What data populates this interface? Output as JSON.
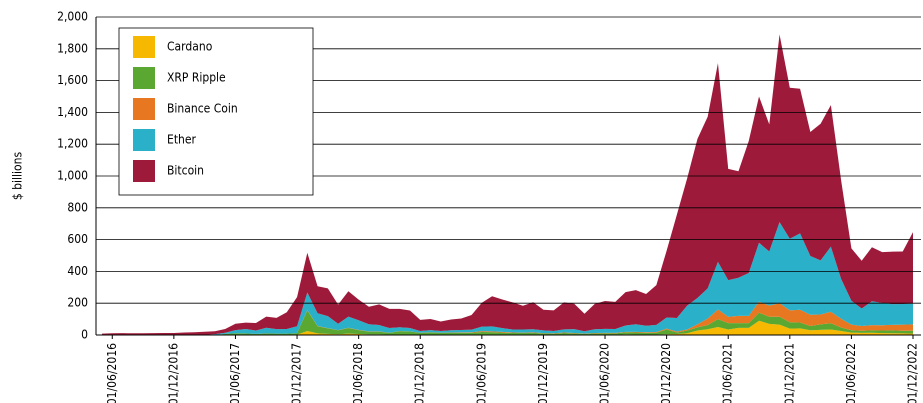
{
  "chart_data": {
    "type": "stacked_area",
    "y_label": "$ billions",
    "x": [
      "01/05/2016",
      "01/06/2016",
      "01/07/2016",
      "01/08/2016",
      "01/09/2016",
      "01/10/2016",
      "01/11/2016",
      "01/12/2016",
      "01/01/2017",
      "01/02/2017",
      "01/03/2017",
      "01/04/2017",
      "01/05/2017",
      "01/06/2017",
      "01/07/2017",
      "01/08/2017",
      "01/09/2017",
      "01/10/2017",
      "01/11/2017",
      "01/12/2017",
      "01/01/2018",
      "01/02/2018",
      "01/03/2018",
      "01/04/2018",
      "01/05/2018",
      "01/06/2018",
      "01/07/2018",
      "01/08/2018",
      "01/09/2018",
      "01/10/2018",
      "01/11/2018",
      "01/12/2018",
      "01/01/2019",
      "01/02/2019",
      "01/03/2019",
      "01/04/2019",
      "01/05/2019",
      "01/06/2019",
      "01/07/2019",
      "01/08/2019",
      "01/09/2019",
      "01/10/2019",
      "01/11/2019",
      "01/12/2019",
      "01/01/2020",
      "01/02/2020",
      "01/03/2020",
      "01/04/2020",
      "01/05/2020",
      "01/06/2020",
      "01/07/2020",
      "01/08/2020",
      "01/09/2020",
      "01/10/2020",
      "01/11/2020",
      "01/12/2020",
      "01/01/2021",
      "01/02/2021",
      "01/03/2021",
      "01/04/2021",
      "01/05/2021",
      "01/06/2021",
      "01/07/2021",
      "01/08/2021",
      "01/09/2021",
      "01/10/2021",
      "01/11/2021",
      "01/12/2021",
      "01/01/2022",
      "01/02/2022",
      "01/03/2022",
      "01/04/2022",
      "01/05/2022",
      "01/06/2022",
      "01/07/2022",
      "01/08/2022",
      "01/09/2022",
      "01/10/2022",
      "01/11/2022",
      "01/12/2022"
    ],
    "xticks": [
      "01/06/2016",
      "01/12/2016",
      "01/06/2017",
      "01/12/2017",
      "01/06/2018",
      "01/12/2018",
      "01/06/2019",
      "01/12/2019",
      "01/06/2020",
      "01/12/2020",
      "01/06/2021",
      "01/12/2021",
      "01/06/2022",
      "01/12/2022"
    ],
    "ylim": [
      0,
      2000
    ],
    "yticks": [
      0,
      200,
      400,
      600,
      800,
      {
        "value": 1000,
        "label": "1,000"
      },
      {
        "value": 1200,
        "label": "1,200"
      },
      {
        "value": 1400,
        "label": "1,400"
      },
      {
        "value": 1600,
        "label": "1,600"
      },
      {
        "value": 1800,
        "label": "1,800"
      },
      {
        "value": 2000,
        "label": "2,000"
      }
    ],
    "grid": true,
    "legend": "upper left",
    "series": [
      {
        "name": "Cardano",
        "color": "#f6b800",
        "values": [
          0,
          0,
          0,
          0,
          0,
          0,
          0,
          0,
          0,
          0,
          0,
          0,
          0,
          0,
          0,
          0,
          0.8,
          0.7,
          0.8,
          2.5,
          25,
          10,
          7,
          5,
          9,
          6,
          4,
          4,
          2,
          2,
          2,
          1,
          1,
          1,
          1,
          1,
          2,
          2,
          2,
          2,
          1.5,
          1.3,
          1.3,
          1,
          1,
          1.5,
          1.2,
          0.8,
          1.3,
          2,
          2.5,
          4,
          3.5,
          3,
          3.5,
          5,
          6,
          11,
          28,
          36,
          50,
          35,
          45,
          45,
          90,
          70,
          65,
          40,
          42,
          30,
          32,
          35,
          25,
          15,
          13,
          14,
          12,
          11,
          10,
          9
        ]
      },
      {
        "name": "XRP Ripple",
        "color": "#5aa832",
        "values": [
          0.2,
          0.2,
          0.3,
          0.2,
          0.3,
          0.3,
          0.3,
          0.2,
          0.2,
          0.2,
          0.3,
          1,
          7,
          11,
          10,
          7,
          9,
          8,
          8,
          9,
          130,
          45,
          35,
          25,
          35,
          25,
          17,
          17,
          11,
          22,
          20,
          12,
          15,
          12,
          13,
          13,
          12,
          17,
          16,
          13,
          11,
          12,
          12,
          9,
          8,
          11,
          9,
          7,
          9,
          9,
          8,
          13,
          12,
          11,
          11,
          30,
          10,
          17,
          20,
          27,
          50,
          40,
          30,
          30,
          50,
          45,
          50,
          40,
          37,
          27,
          35,
          39,
          22,
          15,
          14,
          15,
          16,
          18,
          17,
          18
        ]
      },
      {
        "name": "Binance Coin",
        "color": "#e87722",
        "values": [
          0,
          0,
          0,
          0,
          0,
          0,
          0,
          0,
          0,
          0,
          0,
          0,
          0,
          0,
          0.1,
          0.1,
          0.1,
          0.1,
          0.2,
          0.4,
          2,
          1.5,
          1.5,
          1,
          1.5,
          1.5,
          1.5,
          1.5,
          1,
          1,
          1,
          0.8,
          1,
          1,
          1.5,
          2.5,
          3,
          5,
          5,
          5,
          3.5,
          2,
          3,
          2,
          2,
          3,
          2.5,
          2,
          2.5,
          2.5,
          2.5,
          3,
          4,
          4,
          4,
          5,
          6,
          7,
          20,
          40,
          60,
          40,
          45,
          45,
          70,
          70,
          85,
          75,
          80,
          70,
          62,
          72,
          55,
          35,
          30,
          33,
          33,
          35,
          38,
          40
        ]
      },
      {
        "name": "Ether",
        "color": "#2ab0c8",
        "values": [
          0.9,
          1.1,
          1,
          0.9,
          1,
          1,
          0.8,
          0.7,
          0.8,
          1,
          1.5,
          4.5,
          7.5,
          20,
          28,
          21,
          36,
          28,
          29,
          43,
          110,
          80,
          75,
          40,
          70,
          60,
          45,
          40,
          30,
          24,
          21,
          11,
          14,
          11,
          14,
          15,
          17,
          29,
          31,
          23,
          19,
          19,
          20,
          17,
          14,
          20,
          24,
          14,
          23,
          25,
          25,
          40,
          48,
          40,
          45,
          70,
          85,
          150,
          165,
          190,
          300,
          230,
          240,
          270,
          370,
          340,
          510,
          450,
          480,
          370,
          340,
          410,
          250,
          150,
          110,
          150,
          140,
          130,
          130,
          130
        ]
      },
      {
        "name": "Bitcoin",
        "color": "#9e1a3a",
        "values": [
          7.5,
          10,
          10.5,
          9.5,
          10,
          10.5,
          11.5,
          12,
          15,
          16,
          19,
          18,
          23,
          40,
          40,
          47,
          70,
          71,
          105,
          183,
          250,
          170,
          175,
          120,
          160,
          130,
          110,
          130,
          120,
          115,
          110,
          70,
          70,
          60,
          68,
          72,
          92,
          150,
          190,
          180,
          170,
          150,
          170,
          130,
          130,
          170,
          160,
          110,
          160,
          175,
          170,
          210,
          215,
          200,
          250,
          420,
          650,
          800,
          1000,
          1080,
          1250,
          700,
          670,
          830,
          920,
          800,
          1180,
          950,
          910,
          780,
          860,
          890,
          620,
          330,
          300,
          340,
          320,
          330,
          330,
          450
        ]
      }
    ]
  }
}
